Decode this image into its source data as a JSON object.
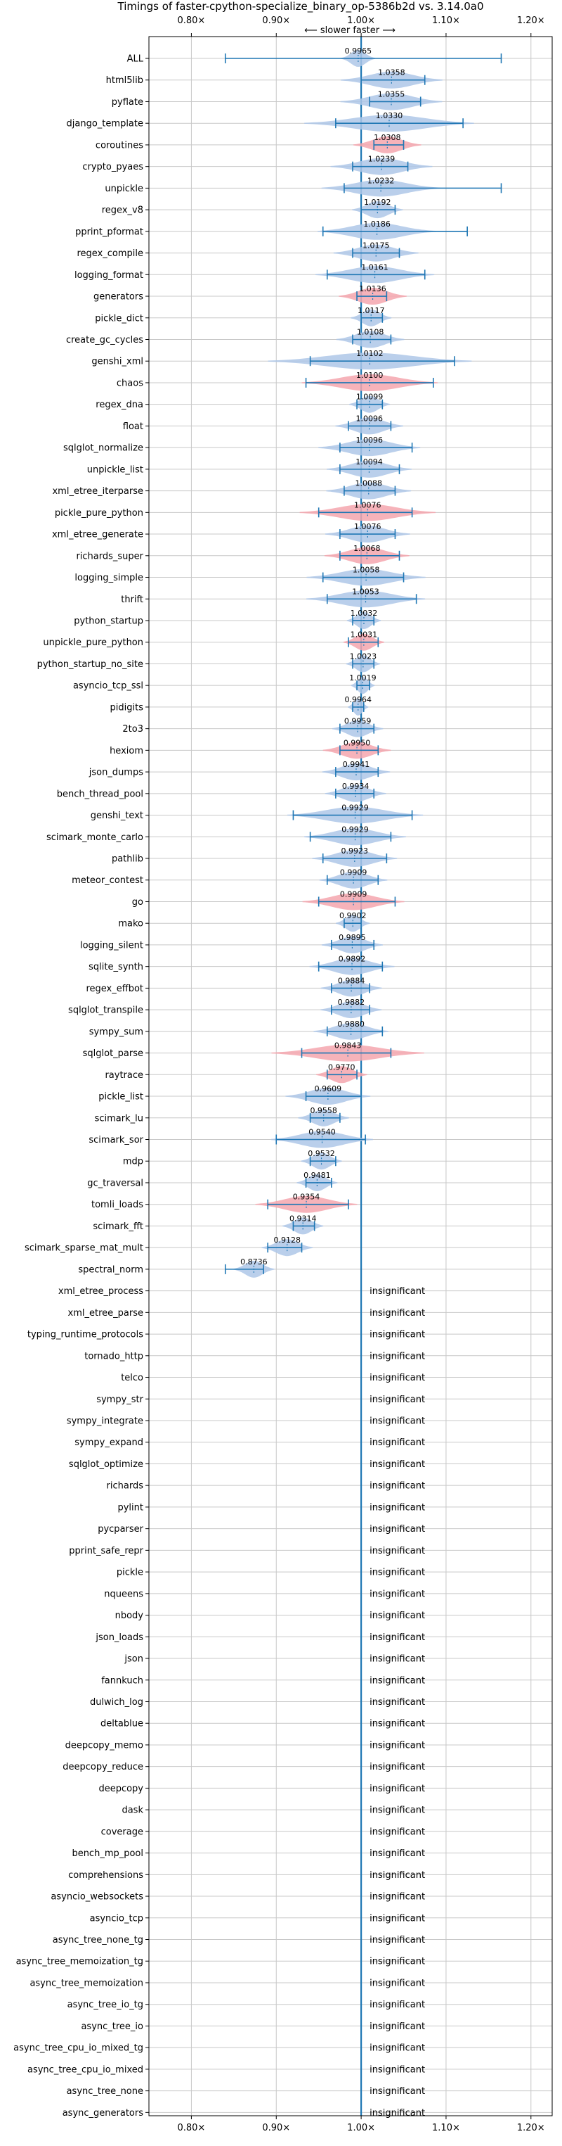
{
  "colors": {
    "faster": "#1f77b4",
    "faster_fill": "#aec7e8",
    "slower_fill": "#f4a6ae",
    "refline": "#1f77b4",
    "grid": "#c8c8c8"
  },
  "chart_data": {
    "type": "violin",
    "title": "Timings of faster-cpython-specialize_binary_op-5386b2d vs. 3.14.0a0",
    "direction_label": "⟵ slower    faster ⟶",
    "xlim": [
      0.75,
      1.225
    ],
    "xticks": [
      0.8,
      0.9,
      1.0,
      1.1,
      1.2
    ],
    "xtick_labels": [
      "0.80×",
      "0.90×",
      "1.00×",
      "1.10×",
      "1.20×"
    ],
    "insignificant_label": "insignificant",
    "benchmarks": [
      {
        "name": "ALL",
        "value": 0.9965,
        "label": "0.9965",
        "lo": 0.84,
        "hi": 1.165,
        "spread": 0.01,
        "slower": false
      },
      {
        "name": "html5lib",
        "value": 1.0358,
        "label": "1.0358",
        "lo": 1.0,
        "hi": 1.075,
        "spread": 0.03,
        "slower": false
      },
      {
        "name": "pyflate",
        "value": 1.0355,
        "label": "1.0355",
        "lo": 1.01,
        "hi": 1.07,
        "spread": 0.03,
        "slower": false
      },
      {
        "name": "django_template",
        "value": 1.033,
        "label": "1.0330",
        "lo": 0.97,
        "hi": 1.12,
        "spread": 0.05,
        "slower": false
      },
      {
        "name": "coroutines",
        "value": 1.0308,
        "label": "1.0308",
        "lo": 1.015,
        "hi": 1.05,
        "spread": 0.02,
        "slower": true
      },
      {
        "name": "crypto_pyaes",
        "value": 1.0239,
        "label": "1.0239",
        "lo": 0.99,
        "hi": 1.055,
        "spread": 0.03,
        "slower": false
      },
      {
        "name": "unpickle",
        "value": 1.0232,
        "label": "1.0232",
        "lo": 0.98,
        "hi": 1.165,
        "spread": 0.035,
        "slower": false
      },
      {
        "name": "regex_v8",
        "value": 1.0192,
        "label": "1.0192",
        "lo": 1.0,
        "hi": 1.04,
        "spread": 0.015,
        "slower": false
      },
      {
        "name": "pprint_pformat",
        "value": 1.0186,
        "label": "1.0186",
        "lo": 0.955,
        "hi": 1.125,
        "spread": 0.035,
        "slower": false
      },
      {
        "name": "regex_compile",
        "value": 1.0175,
        "label": "1.0175",
        "lo": 0.99,
        "hi": 1.045,
        "spread": 0.025,
        "slower": false
      },
      {
        "name": "logging_format",
        "value": 1.0161,
        "label": "1.0161",
        "lo": 0.96,
        "hi": 1.075,
        "spread": 0.035,
        "slower": false
      },
      {
        "name": "generators",
        "value": 1.0136,
        "label": "1.0136",
        "lo": 0.995,
        "hi": 1.03,
        "spread": 0.02,
        "slower": true
      },
      {
        "name": "pickle_dict",
        "value": 1.0117,
        "label": "1.0117",
        "lo": 1.0,
        "hi": 1.025,
        "spread": 0.012,
        "slower": false
      },
      {
        "name": "create_gc_cycles",
        "value": 1.0108,
        "label": "1.0108",
        "lo": 0.99,
        "hi": 1.035,
        "spread": 0.02,
        "slower": false
      },
      {
        "name": "genshi_xml",
        "value": 1.0102,
        "label": "1.0102",
        "lo": 0.94,
        "hi": 1.11,
        "spread": 0.06,
        "slower": false
      },
      {
        "name": "chaos",
        "value": 1.01,
        "label": "1.0100",
        "lo": 0.935,
        "hi": 1.085,
        "spread": 0.04,
        "slower": true
      },
      {
        "name": "regex_dna",
        "value": 1.0099,
        "label": "1.0099",
        "lo": 0.995,
        "hi": 1.025,
        "spread": 0.012,
        "slower": false
      },
      {
        "name": "float",
        "value": 1.0096,
        "label": "1.0096",
        "lo": 0.985,
        "hi": 1.035,
        "spread": 0.02,
        "slower": false
      },
      {
        "name": "sqlglot_normalize",
        "value": 1.0096,
        "label": "1.0096",
        "lo": 0.975,
        "hi": 1.06,
        "spread": 0.03,
        "slower": false
      },
      {
        "name": "unpickle_list",
        "value": 1.0094,
        "label": "1.0094",
        "lo": 0.975,
        "hi": 1.045,
        "spread": 0.025,
        "slower": false
      },
      {
        "name": "xml_etree_iterparse",
        "value": 1.0088,
        "label": "1.0088",
        "lo": 0.98,
        "hi": 1.04,
        "spread": 0.025,
        "slower": false
      },
      {
        "name": "pickle_pure_python",
        "value": 1.0076,
        "label": "1.0076",
        "lo": 0.95,
        "hi": 1.06,
        "spread": 0.04,
        "slower": true
      },
      {
        "name": "xml_etree_generate",
        "value": 1.0076,
        "label": "1.0076",
        "lo": 0.975,
        "hi": 1.04,
        "spread": 0.025,
        "slower": false
      },
      {
        "name": "richards_super",
        "value": 1.0068,
        "label": "1.0068",
        "lo": 0.975,
        "hi": 1.045,
        "spread": 0.025,
        "slower": true
      },
      {
        "name": "logging_simple",
        "value": 1.0058,
        "label": "1.0058",
        "lo": 0.955,
        "hi": 1.05,
        "spread": 0.035,
        "slower": false
      },
      {
        "name": "thrift",
        "value": 1.0053,
        "label": "1.0053",
        "lo": 0.96,
        "hi": 1.065,
        "spread": 0.035,
        "slower": false
      },
      {
        "name": "python_startup",
        "value": 1.0032,
        "label": "1.0032",
        "lo": 0.99,
        "hi": 1.015,
        "spread": 0.01,
        "slower": false
      },
      {
        "name": "unpickle_pure_python",
        "value": 1.0031,
        "label": "1.0031",
        "lo": 0.985,
        "hi": 1.02,
        "spread": 0.012,
        "slower": true
      },
      {
        "name": "python_startup_no_site",
        "value": 1.0023,
        "label": "1.0023",
        "lo": 0.99,
        "hi": 1.015,
        "spread": 0.01,
        "slower": false
      },
      {
        "name": "asyncio_tcp_ssl",
        "value": 1.0019,
        "label": "1.0019",
        "lo": 0.995,
        "hi": 1.01,
        "spread": 0.007,
        "slower": false
      },
      {
        "name": "pidigits",
        "value": 0.9964,
        "label": "0.9964",
        "lo": 0.99,
        "hi": 1.003,
        "spread": 0.006,
        "slower": false
      },
      {
        "name": "2to3",
        "value": 0.9959,
        "label": "0.9959",
        "lo": 0.975,
        "hi": 1.015,
        "spread": 0.015,
        "slower": false
      },
      {
        "name": "hexiom",
        "value": 0.995,
        "label": "0.9950",
        "lo": 0.975,
        "hi": 1.02,
        "spread": 0.02,
        "slower": true
      },
      {
        "name": "json_dumps",
        "value": 0.9941,
        "label": "0.9941",
        "lo": 0.97,
        "hi": 1.02,
        "spread": 0.02,
        "slower": false
      },
      {
        "name": "bench_thread_pool",
        "value": 0.9934,
        "label": "0.9934",
        "lo": 0.97,
        "hi": 1.015,
        "spread": 0.018,
        "slower": false
      },
      {
        "name": "genshi_text",
        "value": 0.9929,
        "label": "0.9929",
        "lo": 0.92,
        "hi": 1.06,
        "spread": 0.04,
        "slower": false
      },
      {
        "name": "scimark_monte_carlo",
        "value": 0.9929,
        "label": "0.9929",
        "lo": 0.94,
        "hi": 1.035,
        "spread": 0.03,
        "slower": false
      },
      {
        "name": "pathlib",
        "value": 0.9923,
        "label": "0.9923",
        "lo": 0.955,
        "hi": 1.03,
        "spread": 0.025,
        "slower": false
      },
      {
        "name": "meteor_contest",
        "value": 0.9909,
        "label": "0.9909",
        "lo": 0.96,
        "hi": 1.02,
        "spread": 0.02,
        "slower": false
      },
      {
        "name": "go",
        "value": 0.9909,
        "label": "0.9909",
        "lo": 0.95,
        "hi": 1.04,
        "spread": 0.03,
        "slower": true
      },
      {
        "name": "mako",
        "value": 0.9902,
        "label": "0.9902",
        "lo": 0.98,
        "hi": 1.0,
        "spread": 0.01,
        "slower": false
      },
      {
        "name": "logging_silent",
        "value": 0.9895,
        "label": "0.9895",
        "lo": 0.965,
        "hi": 1.015,
        "spread": 0.018,
        "slower": false
      },
      {
        "name": "sqlite_synth",
        "value": 0.9892,
        "label": "0.9892",
        "lo": 0.95,
        "hi": 1.025,
        "spread": 0.025,
        "slower": false
      },
      {
        "name": "regex_effbot",
        "value": 0.9884,
        "label": "0.9884",
        "lo": 0.965,
        "hi": 1.01,
        "spread": 0.018,
        "slower": false
      },
      {
        "name": "sqlglot_transpile",
        "value": 0.9882,
        "label": "0.9882",
        "lo": 0.965,
        "hi": 1.01,
        "spread": 0.018,
        "slower": false
      },
      {
        "name": "sympy_sum",
        "value": 0.988,
        "label": "0.9880",
        "lo": 0.96,
        "hi": 1.025,
        "spread": 0.022,
        "slower": false
      },
      {
        "name": "sqlglot_parse",
        "value": 0.9843,
        "label": "0.9843",
        "lo": 0.93,
        "hi": 1.035,
        "spread": 0.045,
        "slower": true
      },
      {
        "name": "raytrace",
        "value": 0.977,
        "label": "0.9770",
        "lo": 0.96,
        "hi": 0.995,
        "spread": 0.015,
        "slower": true
      },
      {
        "name": "pickle_list",
        "value": 0.9609,
        "label": "0.9609",
        "lo": 0.935,
        "hi": 1.0,
        "spread": 0.025,
        "slower": false
      },
      {
        "name": "scimark_lu",
        "value": 0.9558,
        "label": "0.9558",
        "lo": 0.94,
        "hi": 0.975,
        "spread": 0.015,
        "slower": false
      },
      {
        "name": "scimark_sor",
        "value": 0.954,
        "label": "0.9540",
        "lo": 0.9,
        "hi": 1.005,
        "spread": 0.03,
        "slower": false
      },
      {
        "name": "mdp",
        "value": 0.9532,
        "label": "0.9532",
        "lo": 0.94,
        "hi": 0.97,
        "spread": 0.012,
        "slower": false
      },
      {
        "name": "gc_traversal",
        "value": 0.9481,
        "label": "0.9481",
        "lo": 0.935,
        "hi": 0.965,
        "spread": 0.012,
        "slower": false
      },
      {
        "name": "tomli_loads",
        "value": 0.9354,
        "label": "0.9354",
        "lo": 0.89,
        "hi": 0.985,
        "spread": 0.03,
        "slower": true
      },
      {
        "name": "scimark_fft",
        "value": 0.9314,
        "label": "0.9314",
        "lo": 0.92,
        "hi": 0.945,
        "spread": 0.012,
        "slower": false
      },
      {
        "name": "scimark_sparse_mat_mult",
        "value": 0.9128,
        "label": "0.9128",
        "lo": 0.89,
        "hi": 0.93,
        "spread": 0.015,
        "slower": false
      },
      {
        "name": "spectral_norm",
        "value": 0.8736,
        "label": "0.8736",
        "lo": 0.84,
        "hi": 0.885,
        "spread": 0.012,
        "slower": false
      },
      {
        "name": "xml_etree_process",
        "value": null
      },
      {
        "name": "xml_etree_parse",
        "value": null
      },
      {
        "name": "typing_runtime_protocols",
        "value": null
      },
      {
        "name": "tornado_http",
        "value": null
      },
      {
        "name": "telco",
        "value": null
      },
      {
        "name": "sympy_str",
        "value": null
      },
      {
        "name": "sympy_integrate",
        "value": null
      },
      {
        "name": "sympy_expand",
        "value": null
      },
      {
        "name": "sqlglot_optimize",
        "value": null
      },
      {
        "name": "richards",
        "value": null
      },
      {
        "name": "pylint",
        "value": null
      },
      {
        "name": "pycparser",
        "value": null
      },
      {
        "name": "pprint_safe_repr",
        "value": null
      },
      {
        "name": "pickle",
        "value": null
      },
      {
        "name": "nqueens",
        "value": null
      },
      {
        "name": "nbody",
        "value": null
      },
      {
        "name": "json_loads",
        "value": null
      },
      {
        "name": "json",
        "value": null
      },
      {
        "name": "fannkuch",
        "value": null
      },
      {
        "name": "dulwich_log",
        "value": null
      },
      {
        "name": "deltablue",
        "value": null
      },
      {
        "name": "deepcopy_memo",
        "value": null
      },
      {
        "name": "deepcopy_reduce",
        "value": null
      },
      {
        "name": "deepcopy",
        "value": null
      },
      {
        "name": "dask",
        "value": null
      },
      {
        "name": "coverage",
        "value": null
      },
      {
        "name": "bench_mp_pool",
        "value": null
      },
      {
        "name": "comprehensions",
        "value": null
      },
      {
        "name": "asyncio_websockets",
        "value": null
      },
      {
        "name": "asyncio_tcp",
        "value": null
      },
      {
        "name": "async_tree_none_tg",
        "value": null
      },
      {
        "name": "async_tree_memoization_tg",
        "value": null
      },
      {
        "name": "async_tree_memoization",
        "value": null
      },
      {
        "name": "async_tree_io_tg",
        "value": null
      },
      {
        "name": "async_tree_io",
        "value": null
      },
      {
        "name": "async_tree_cpu_io_mixed_tg",
        "value": null
      },
      {
        "name": "async_tree_cpu_io_mixed",
        "value": null
      },
      {
        "name": "async_tree_none",
        "value": null
      },
      {
        "name": "async_generators",
        "value": null
      }
    ]
  }
}
